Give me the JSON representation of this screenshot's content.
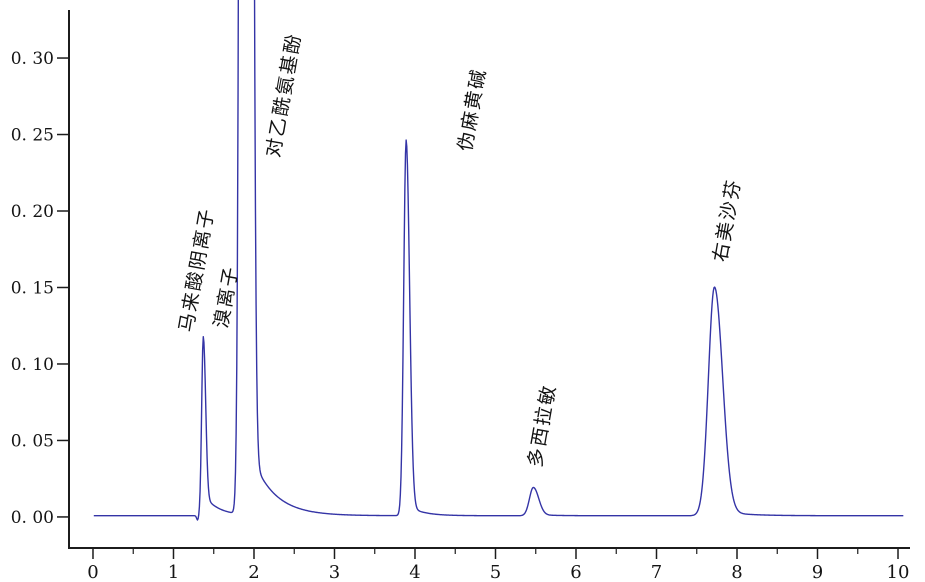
{
  "figure": {
    "background": "#ffffff",
    "axis_color": "#1c1c1c",
    "text_color": "#141414",
    "trace_color": "#3434a6"
  },
  "chart_data": {
    "type": "line",
    "title": "",
    "xlabel": "",
    "ylabel": "",
    "grid": false,
    "legend": false,
    "x_axis": {
      "min": 0,
      "max": 10,
      "major_ticks": [
        0,
        1,
        2,
        3,
        4,
        5,
        6,
        7,
        8,
        9,
        10
      ],
      "major_tick_labels": [
        "0",
        "1",
        "2",
        "3",
        "4",
        "5",
        "6",
        "7",
        "8",
        "9",
        "10"
      ],
      "minor_tick_step": 0.5,
      "plot_xlim": [
        -0.298,
        10.149
      ]
    },
    "y_axis": {
      "major_ticks": [
        0.0,
        0.05,
        0.1,
        0.15,
        0.2,
        0.25,
        0.3
      ],
      "major_tick_labels": [
        "0. 00",
        "0. 05",
        "0. 10",
        "0. 15",
        "0. 20",
        "0. 25",
        "0. 30"
      ],
      "plot_ylim": [
        -0.0203,
        0.3314
      ]
    },
    "peaks": [
      {
        "name": "马来酸阴离子",
        "retention_time": 1.37,
        "height": 0.118,
        "off_scale": false
      },
      {
        "name": "溴离子",
        "retention_time": 1.87,
        "height": 0.33,
        "off_scale": true
      },
      {
        "name": "对乙酰氨基酚",
        "retention_time": 1.95,
        "height": 0.33,
        "off_scale": true
      },
      {
        "name": "伪麻黄碱",
        "retention_time": 3.89,
        "height": 0.246,
        "off_scale": false
      },
      {
        "name": "多西拉敏",
        "retention_time": 5.47,
        "height": 0.019,
        "off_scale": false
      },
      {
        "name": "右美沙芬",
        "retention_time": 7.72,
        "height": 0.15,
        "off_scale": false
      }
    ],
    "peak_labels": [
      {
        "text": "马来酸阴离子",
        "x": 1.23,
        "y": 0.1203,
        "rotation": -80
      },
      {
        "text": "溴离子",
        "x": 1.665,
        "y": 0.1229,
        "rotation": -80
      },
      {
        "text": "对乙酰氨基酚",
        "x": 2.311,
        "y": 0.2346,
        "rotation": -80
      },
      {
        "text": "伪麻黄碱",
        "x": 4.696,
        "y": 0.2386,
        "rotation": -80
      },
      {
        "text": "多西拉敏",
        "x": 5.565,
        "y": 0.032,
        "rotation": -80
      },
      {
        "text": "右美沙芬",
        "x": 7.863,
        "y": 0.1663,
        "rotation": -80
      }
    ],
    "curve_model": {
      "baseline": 0.0008,
      "x_start": 0.01,
      "x_end": 10.07,
      "sample_step": 0.008,
      "components": [
        {
          "center": 1.3,
          "height": -0.003,
          "sigma_left": 0.012,
          "sigma_right": 0.012,
          "tail_frac": 0,
          "tail_tau": 1
        },
        {
          "center": 1.37,
          "height": 0.117,
          "sigma_left": 0.02,
          "sigma_right": 0.028,
          "tail_frac": 0.12,
          "tail_tau": 0.18
        },
        {
          "center": 1.87,
          "height": 1.8,
          "sigma_left": 0.034,
          "sigma_right": 0.045,
          "tail_frac": 0,
          "tail_tau": 1
        },
        {
          "center": 1.93,
          "height": 1.8,
          "sigma_left": 0.045,
          "sigma_right": 0.04,
          "tail_frac": 0.025,
          "tail_tau": 0.28
        },
        {
          "center": 3.89,
          "height": 0.2455,
          "sigma_left": 0.03,
          "sigma_right": 0.042,
          "tail_frac": 0.03,
          "tail_tau": 0.18
        },
        {
          "center": 5.47,
          "height": 0.0185,
          "sigma_left": 0.048,
          "sigma_right": 0.065,
          "tail_frac": 0.05,
          "tail_tau": 0.2
        },
        {
          "center": 7.72,
          "height": 0.1495,
          "sigma_left": 0.075,
          "sigma_right": 0.1,
          "tail_frac": 0.025,
          "tail_tau": 0.3
        }
      ]
    }
  }
}
